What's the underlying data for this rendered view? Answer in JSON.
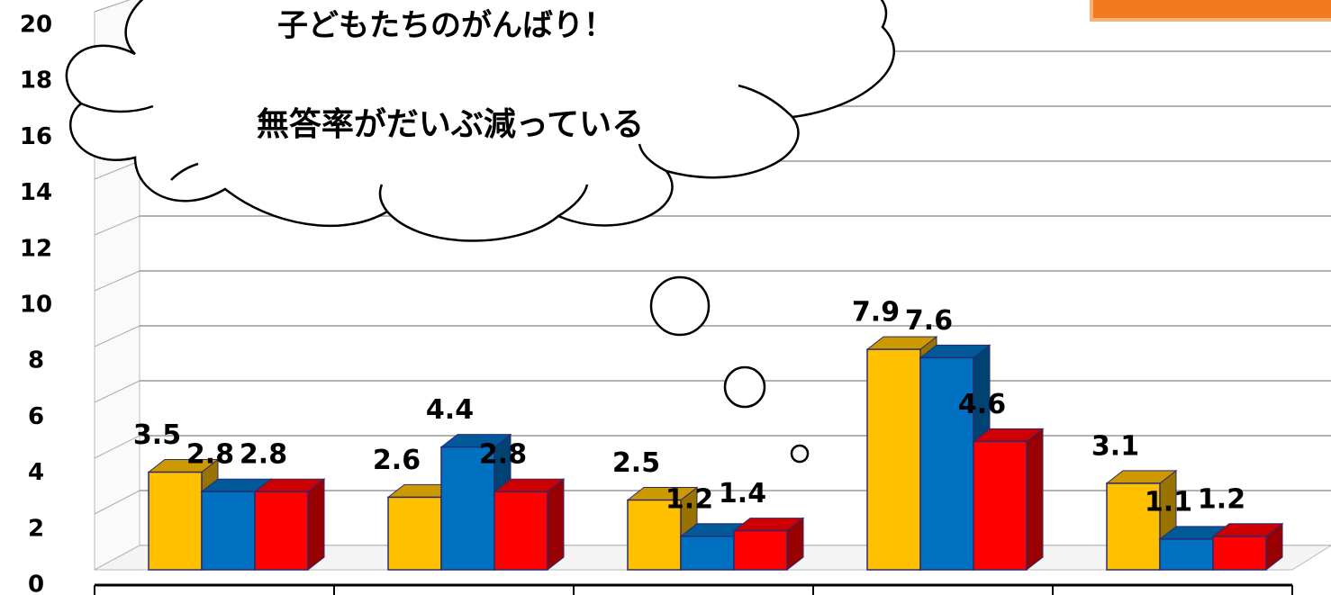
{
  "chart_data": {
    "type": "bar3d",
    "annotations": [
      "子どもたちのがんばり！",
      "無答率がだいぶ減っている"
    ],
    "categories": [
      null,
      null,
      null,
      null,
      null
    ],
    "series": [
      {
        "color": "#FFC000",
        "values": [
          3.5,
          2.6,
          2.5,
          7.9,
          3.1
        ]
      },
      {
        "color": "#0070C0",
        "values": [
          2.8,
          4.4,
          1.2,
          7.6,
          1.1
        ]
      },
      {
        "color": "#FF0000",
        "values": [
          2.8,
          2.8,
          1.4,
          4.6,
          1.2
        ]
      }
    ],
    "ylim": [
      0,
      20
    ],
    "yticks": [
      0,
      2,
      4,
      6,
      8,
      10,
      12,
      14,
      16,
      18,
      20
    ],
    "grid": true
  }
}
